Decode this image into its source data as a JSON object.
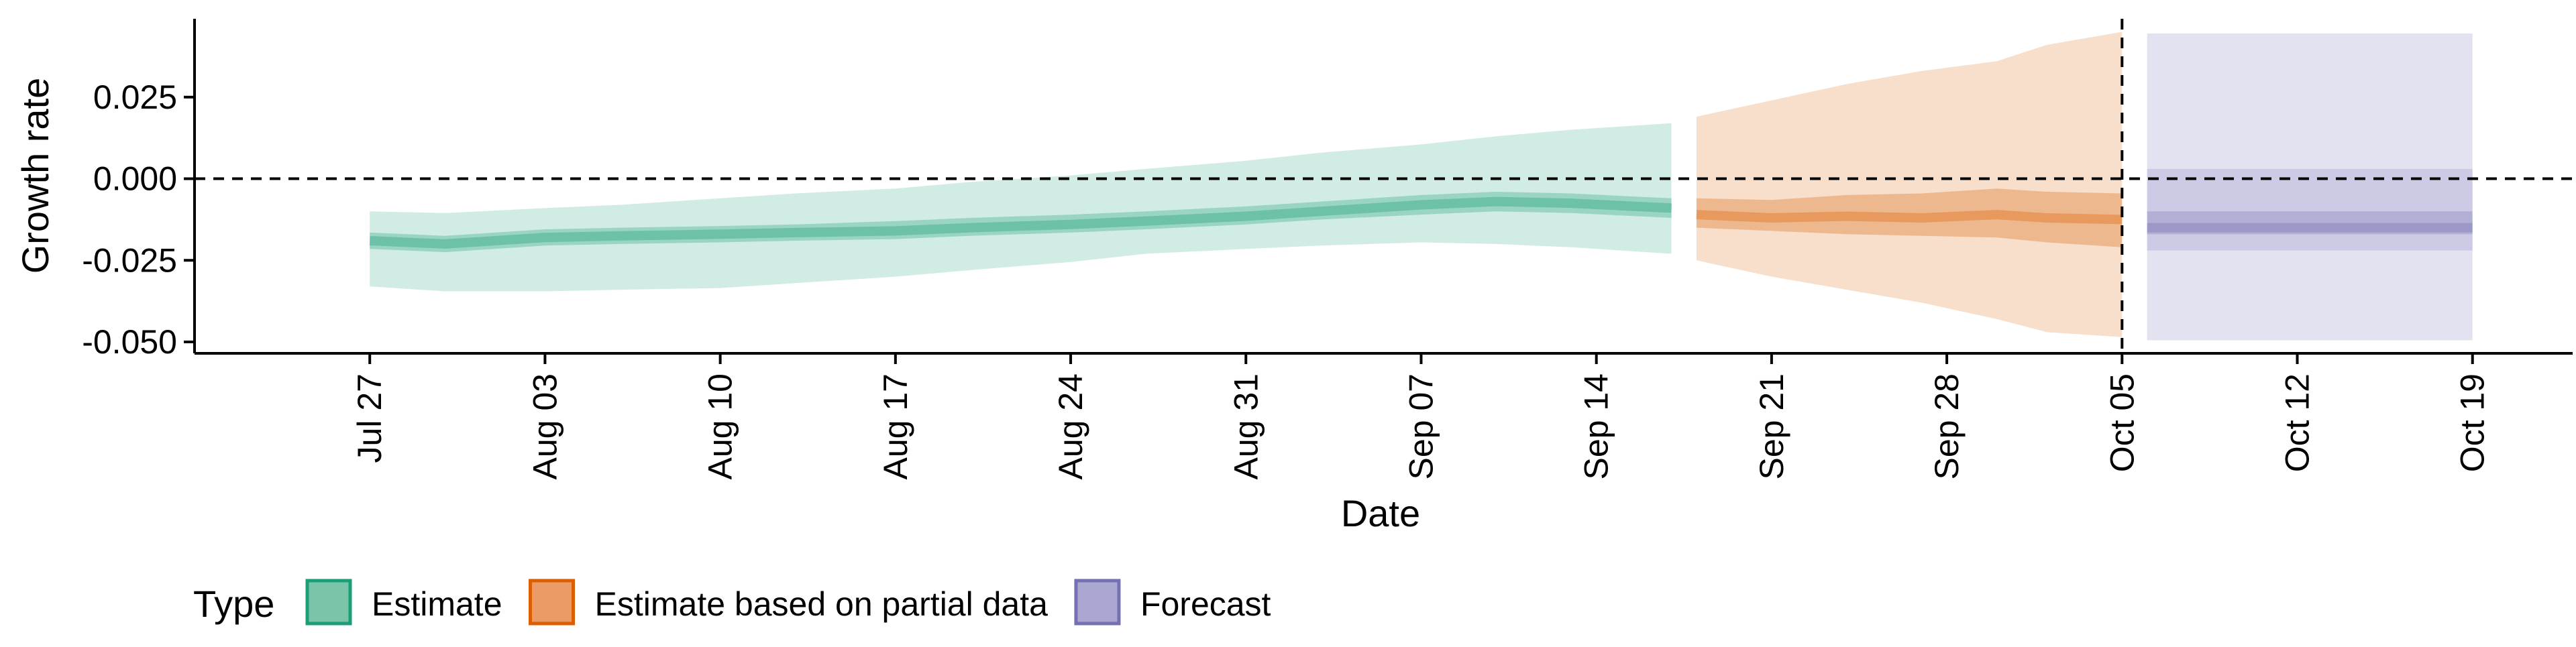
{
  "chart_data": {
    "type": "area",
    "xlabel": "Date",
    "ylabel": "Growth rate",
    "x_ticks": [
      "Jul 27",
      "Aug 03",
      "Aug 10",
      "Aug 17",
      "Aug 24",
      "Aug 31",
      "Sep 07",
      "Sep 14",
      "Sep 21",
      "Sep 28",
      "Oct 05",
      "Oct 12",
      "Oct 19"
    ],
    "y_ticks": [
      "0.025",
      "0.000",
      "-0.025",
      "-0.050"
    ],
    "ylim": [
      -0.0535,
      0.049
    ],
    "xlim": [
      "2020-07-20",
      "2020-10-23"
    ],
    "grid": false,
    "hline": 0,
    "vline": "2020-10-05",
    "legend": {
      "title": "Type",
      "position": "bottom-left",
      "entries": [
        {
          "label": "Estimate",
          "fill": "#7ac5a9",
          "stroke": "#1b9e77"
        },
        {
          "label": "Estimate based on partial data",
          "fill": "#ea9b66",
          "stroke": "#d95f02"
        },
        {
          "label": "Forecast",
          "fill": "#aaa7d1",
          "stroke": "#7570b3"
        }
      ]
    },
    "series": [
      {
        "name": "Estimate",
        "colors": {
          "outer": "#1b9e77",
          "mid": "#1b9e77",
          "inner": "#1b9e77"
        },
        "x": [
          "2020-07-27",
          "2020-07-30",
          "2020-08-03",
          "2020-08-06",
          "2020-08-10",
          "2020-08-13",
          "2020-08-17",
          "2020-08-20",
          "2020-08-24",
          "2020-08-27",
          "2020-08-31",
          "2020-09-03",
          "2020-09-07",
          "2020-09-10",
          "2020-09-13",
          "2020-09-17"
        ],
        "median": [
          -0.019,
          -0.02,
          -0.018,
          -0.0175,
          -0.017,
          -0.0165,
          -0.016,
          -0.015,
          -0.014,
          -0.013,
          -0.0115,
          -0.01,
          -0.008,
          -0.007,
          -0.0075,
          -0.009
        ],
        "lower_50": [
          -0.0215,
          -0.0225,
          -0.0205,
          -0.02,
          -0.0195,
          -0.019,
          -0.0185,
          -0.0175,
          -0.0165,
          -0.0155,
          -0.014,
          -0.0125,
          -0.011,
          -0.01,
          -0.0105,
          -0.012
        ],
        "upper_50": [
          -0.0165,
          -0.0175,
          -0.0155,
          -0.015,
          -0.0145,
          -0.014,
          -0.013,
          -0.012,
          -0.011,
          -0.01,
          -0.0085,
          -0.007,
          -0.005,
          -0.004,
          -0.0045,
          -0.006
        ],
        "lower_90": [
          -0.033,
          -0.0345,
          -0.0345,
          -0.034,
          -0.0335,
          -0.032,
          -0.03,
          -0.028,
          -0.0255,
          -0.023,
          -0.0215,
          -0.0205,
          -0.0195,
          -0.02,
          -0.021,
          -0.023
        ],
        "upper_90": [
          -0.01,
          -0.0105,
          -0.009,
          -0.008,
          -0.006,
          -0.0045,
          -0.003,
          -0.001,
          0.001,
          0.003,
          0.0055,
          0.008,
          0.0105,
          0.013,
          0.015,
          0.017
        ]
      },
      {
        "name": "Estimate based on partial data",
        "colors": {
          "outer": "#d95f02",
          "mid": "#d95f02",
          "inner": "#d95f02"
        },
        "x": [
          "2020-09-18",
          "2020-09-21",
          "2020-09-24",
          "2020-09-27",
          "2020-09-30",
          "2020-10-02",
          "2020-10-05"
        ],
        "median": [
          -0.011,
          -0.012,
          -0.0115,
          -0.012,
          -0.011,
          -0.012,
          -0.0125
        ],
        "lower_50": [
          -0.015,
          -0.016,
          -0.017,
          -0.0175,
          -0.018,
          -0.0195,
          -0.021
        ],
        "upper_50": [
          -0.006,
          -0.0065,
          -0.005,
          -0.0045,
          -0.003,
          -0.004,
          -0.0045
        ],
        "lower_90": [
          -0.025,
          -0.03,
          -0.034,
          -0.038,
          -0.043,
          -0.047,
          -0.0485
        ],
        "upper_90": [
          0.019,
          0.024,
          0.029,
          0.033,
          0.036,
          0.041,
          0.045
        ]
      },
      {
        "name": "Forecast",
        "colors": {
          "outer": "#7570b3",
          "mid": "#7570b3",
          "inner": "#7570b3"
        },
        "x": [
          "2020-10-06",
          "2020-10-19"
        ],
        "median": [
          -0.015,
          -0.015
        ],
        "lower_50": [
          -0.017,
          -0.017
        ],
        "upper_50": [
          -0.01,
          -0.01
        ],
        "lower_90_inner": [
          -0.022,
          -0.022
        ],
        "upper_90_inner": [
          0.003,
          0.003
        ],
        "lower_90": [
          -0.0495,
          -0.0495
        ],
        "upper_90": [
          0.0445,
          0.0445
        ]
      }
    ]
  }
}
